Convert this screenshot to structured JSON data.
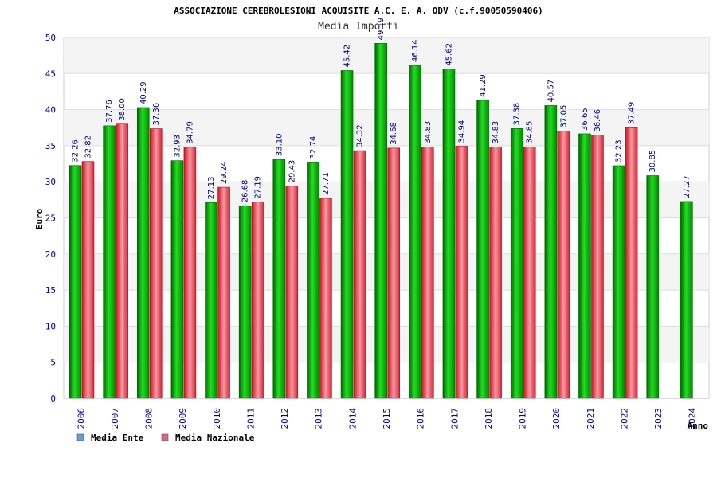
{
  "chart_data": {
    "type": "bar",
    "title": "ASSOCIAZIONE CEREBROLESIONI ACQUISITE A.C. E. A. ODV (c.f.90050590406)",
    "subtitle": "Media Importi",
    "ylabel": "Euro",
    "xlabel": "Anno",
    "ylim": [
      0,
      50
    ],
    "yticks": [
      0,
      5,
      10,
      15,
      20,
      25,
      30,
      35,
      40,
      45,
      50
    ],
    "grid": true,
    "legend_position": "bottom-left",
    "categories": [
      "2006",
      "2007",
      "2008",
      "2009",
      "2010",
      "2011",
      "2012",
      "2013",
      "2014",
      "2015",
      "2016",
      "2017",
      "2018",
      "2019",
      "2020",
      "2021",
      "2022",
      "2023",
      "2024"
    ],
    "series": [
      {
        "name": "Media Ente",
        "color": "#00aa00",
        "legend_color": "#5f9fe0",
        "values": [
          32.26,
          37.76,
          40.29,
          32.93,
          27.13,
          26.68,
          33.1,
          32.74,
          45.42,
          49.19,
          46.14,
          45.62,
          41.29,
          37.38,
          40.57,
          36.65,
          32.23,
          30.85,
          27.27
        ],
        "labels": [
          "32.26",
          "37.76",
          "40.29",
          "32.93",
          "27.13",
          "26.68",
          "33.10",
          "32.74",
          "45.42",
          "49.19",
          "46.14",
          "45.62",
          "41.29",
          "37.38",
          "40.57",
          "36.65",
          "32.23",
          "30.85",
          "27.27"
        ]
      },
      {
        "name": "Media Nazionale",
        "color": "#ee2233",
        "legend_color": "#dd6688",
        "values": [
          32.82,
          38.0,
          37.36,
          34.79,
          29.24,
          27.19,
          29.43,
          27.71,
          34.32,
          34.68,
          34.83,
          34.94,
          34.83,
          34.85,
          37.05,
          36.46,
          37.49,
          null,
          null
        ],
        "labels": [
          "32.82",
          "38.00",
          "37.36",
          "34.79",
          "29.24",
          "27.19",
          "29.43",
          "27.71",
          "34.32",
          "34.68",
          "34.83",
          "34.94",
          "34.83",
          "34.85",
          "37.05",
          "36.46",
          "37.49",
          "",
          ""
        ]
      }
    ]
  }
}
